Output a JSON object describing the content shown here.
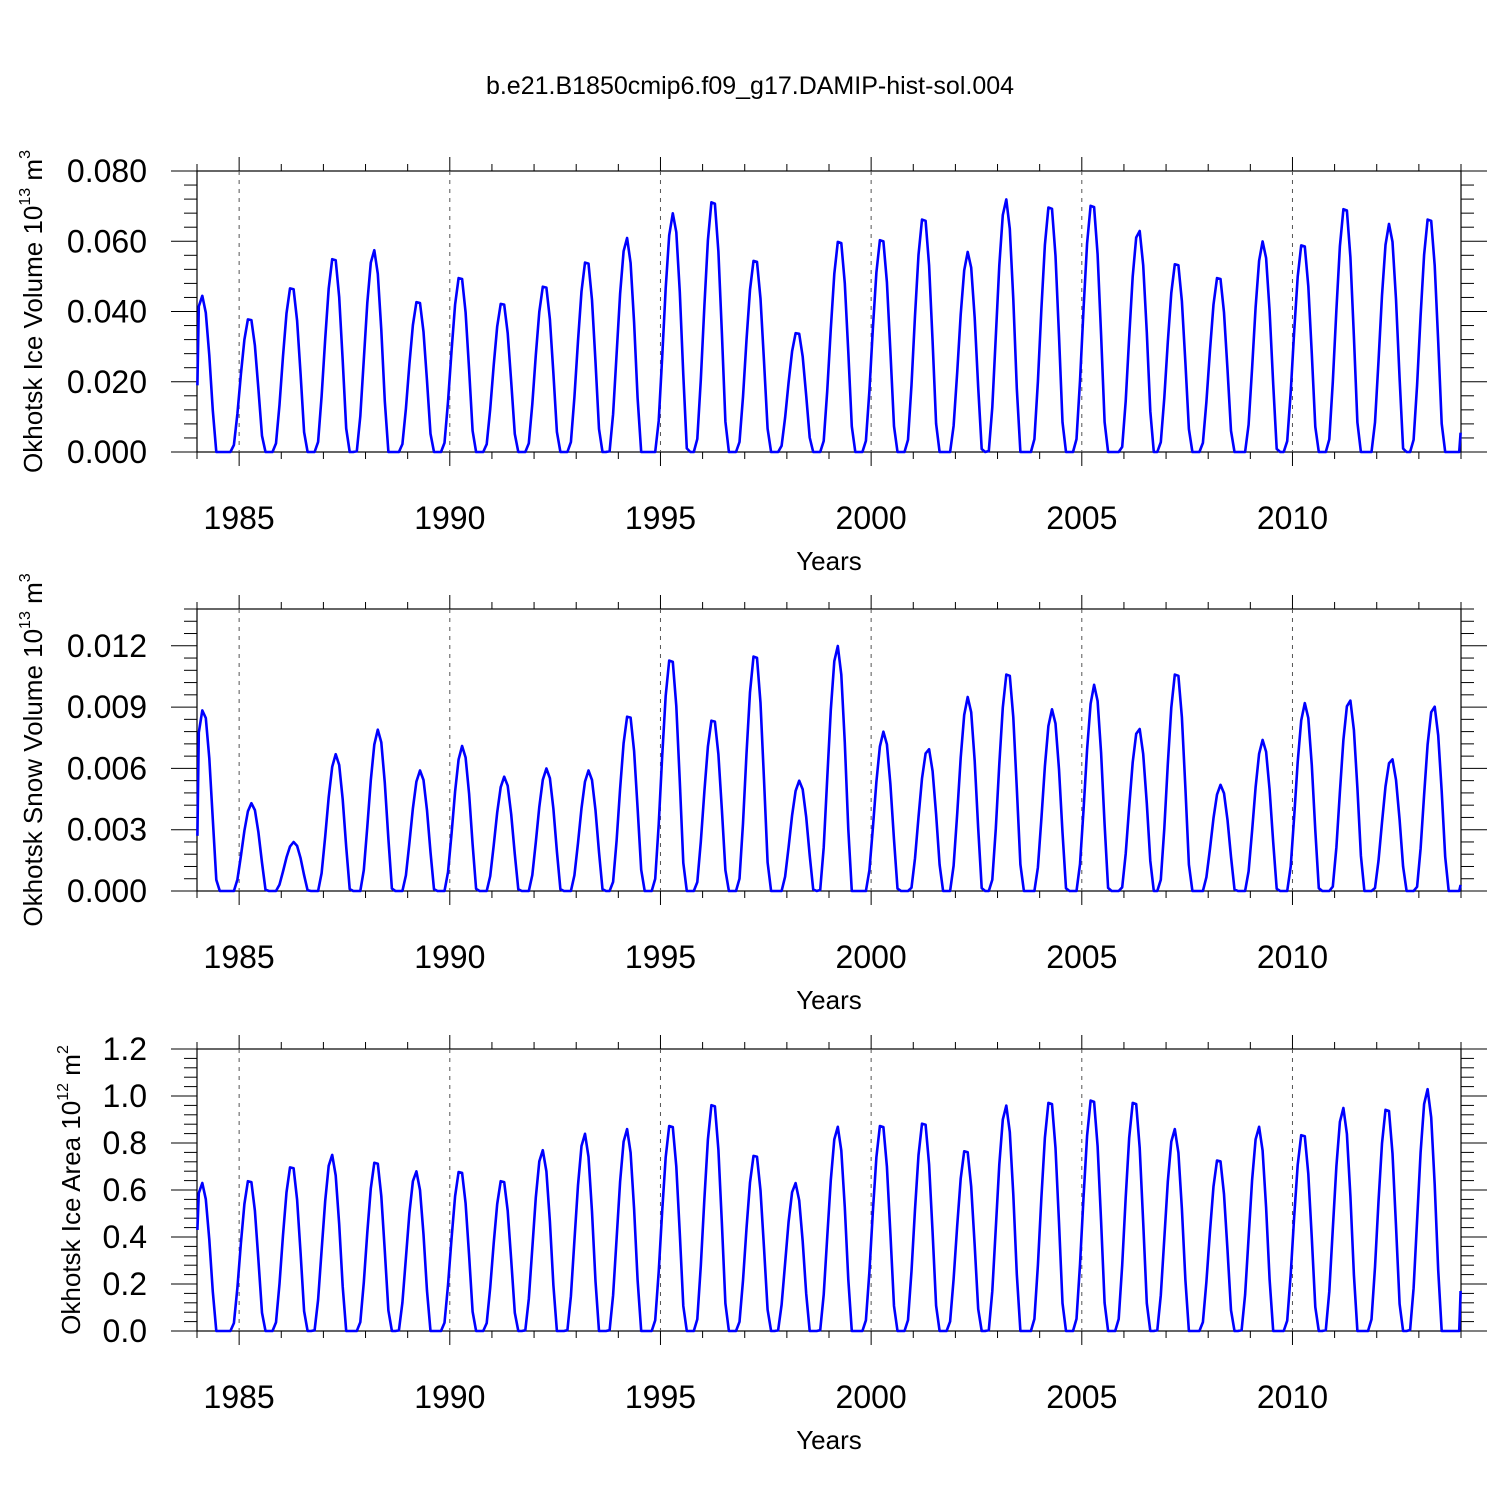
{
  "figure": {
    "title": "b.e21.B1850cmip6.f09_g17.DAMIP-hist-sol.004"
  },
  "chart_data": [
    {
      "type": "line",
      "title": "b.e21.B1850cmip6.f09_g17.DAMIP-hist-sol.004",
      "xlabel": "Years",
      "ylabel": "Okhotsk Ice Volume 10",
      "ylabel_exp": "13",
      "ylabel_unit": " m",
      "ylabel_unit_exp": "3",
      "xlim": [
        1984.0,
        2014.0
      ],
      "ylim": [
        0,
        0.08
      ],
      "ytick_values": [
        0,
        0.02,
        0.04,
        0.06,
        0.08
      ],
      "ytick_labels": [
        "0.000",
        "0.020",
        "0.040",
        "0.060",
        "0.080"
      ],
      "xtick_values": [
        1985,
        1990,
        1995,
        2000,
        2005,
        2010
      ],
      "xtick_labels": [
        "1985",
        "1990",
        "1995",
        "2000",
        "2005",
        "2010"
      ],
      "grid": "dashed vertical lines at year ticks",
      "color": "#0000ff",
      "series": [
        {
          "name": "Okhotsk Ice Volume",
          "peak_times": [
            1984.12,
            1985.25,
            1986.25,
            1987.25,
            1988.2,
            1989.25,
            1990.25,
            1991.25,
            1992.25,
            1993.25,
            1994.2,
            1995.3,
            1996.25,
            1997.25,
            1998.25,
            1999.25,
            2000.25,
            2001.25,
            2002.3,
            2003.2,
            2004.25,
            2005.25,
            2006.35,
            2007.25,
            2008.25,
            2009.3,
            2010.25,
            2011.25,
            2012.3,
            2013.25
          ],
          "peaks": [
            0.0445,
            0.0385,
            0.0475,
            0.056,
            0.0575,
            0.0435,
            0.0505,
            0.043,
            0.048,
            0.055,
            0.061,
            0.068,
            0.0725,
            0.0555,
            0.0345,
            0.061,
            0.0615,
            0.0675,
            0.057,
            0.072,
            0.071,
            0.0715,
            0.0635,
            0.0545,
            0.0505,
            0.06,
            0.06,
            0.0705,
            0.065,
            0.0675
          ],
          "start_value": 0.019,
          "end_value": 0.0055
        }
      ]
    },
    {
      "type": "line",
      "xlabel": "Years",
      "ylabel": "Okhotsk Snow Volume 10",
      "ylabel_exp": "13",
      "ylabel_unit": " m",
      "ylabel_unit_exp": "3",
      "xlim": [
        1984.0,
        2014.0
      ],
      "ylim": [
        0,
        0.0138
      ],
      "ytick_values": [
        0,
        0.003,
        0.006,
        0.009,
        0.012
      ],
      "ytick_labels": [
        "0.000",
        "0.003",
        "0.006",
        "0.009",
        "0.012"
      ],
      "xtick_values": [
        1985,
        1990,
        1995,
        2000,
        2005,
        2010
      ],
      "xtick_labels": [
        "1985",
        "1990",
        "1995",
        "2000",
        "2005",
        "2010"
      ],
      "grid": "dashed vertical lines at year ticks",
      "color": "#0000ff",
      "series": [
        {
          "name": "Okhotsk Snow Volume",
          "peak_times": [
            1984.15,
            1985.3,
            1986.3,
            1987.3,
            1988.3,
            1989.3,
            1990.3,
            1991.3,
            1992.3,
            1993.3,
            1994.25,
            1995.25,
            1996.25,
            1997.25,
            1998.3,
            1999.2,
            2000.3,
            2001.35,
            2002.3,
            2003.25,
            2004.3,
            2005.3,
            2006.35,
            2007.25,
            2008.3,
            2009.3,
            2010.3,
            2011.35,
            2012.35,
            2013.35
          ],
          "peaks": [
            0.0089,
            0.0043,
            0.0024,
            0.0067,
            0.0079,
            0.0059,
            0.0071,
            0.0056,
            0.006,
            0.0059,
            0.0087,
            0.0115,
            0.0085,
            0.0117,
            0.0054,
            0.012,
            0.0078,
            0.007,
            0.0095,
            0.0108,
            0.0089,
            0.0101,
            0.008,
            0.0108,
            0.0052,
            0.0074,
            0.0092,
            0.0094,
            0.0065,
            0.0091
          ],
          "start_value": 0.0027,
          "end_value": 0.0003
        }
      ]
    },
    {
      "type": "line",
      "xlabel": "Years",
      "ylabel": "Okhotsk Ice Area 10",
      "ylabel_exp": "12",
      "ylabel_unit": " m",
      "ylabel_unit_exp": "2",
      "xlim": [
        1984.0,
        2014.0
      ],
      "ylim": [
        0,
        1.2
      ],
      "ytick_values": [
        0,
        0.2,
        0.4,
        0.6,
        0.8,
        1.0,
        1.2
      ],
      "ytick_labels": [
        "0.0",
        "0.2",
        "0.4",
        "0.6",
        "0.8",
        "1.0",
        "1.2"
      ],
      "xtick_values": [
        1985,
        1990,
        1995,
        2000,
        2005,
        2010
      ],
      "xtick_labels": [
        "1985",
        "1990",
        "1995",
        "2000",
        "2005",
        "2010"
      ],
      "grid": "dashed vertical lines at year ticks",
      "color": "#0000ff",
      "series": [
        {
          "name": "Okhotsk Ice Area",
          "peak_times": [
            1984.12,
            1985.25,
            1986.25,
            1987.2,
            1988.25,
            1989.2,
            1990.25,
            1991.25,
            1992.2,
            1993.2,
            1994.2,
            1995.25,
            1996.25,
            1997.25,
            1998.2,
            1999.2,
            2000.25,
            2001.25,
            2002.25,
            2003.2,
            2004.25,
            2005.25,
            2006.25,
            2007.2,
            2008.25,
            2009.2,
            2010.25,
            2011.2,
            2012.25,
            2013.2
          ],
          "peaks": [
            0.63,
            0.65,
            0.71,
            0.75,
            0.73,
            0.68,
            0.69,
            0.65,
            0.77,
            0.84,
            0.86,
            0.89,
            0.98,
            0.76,
            0.63,
            0.87,
            0.89,
            0.9,
            0.78,
            0.96,
            0.99,
            1.0,
            0.99,
            0.86,
            0.74,
            0.87,
            0.85,
            0.95,
            0.96,
            1.03
          ],
          "start_value": 0.43,
          "end_value": 0.17
        }
      ]
    }
  ]
}
